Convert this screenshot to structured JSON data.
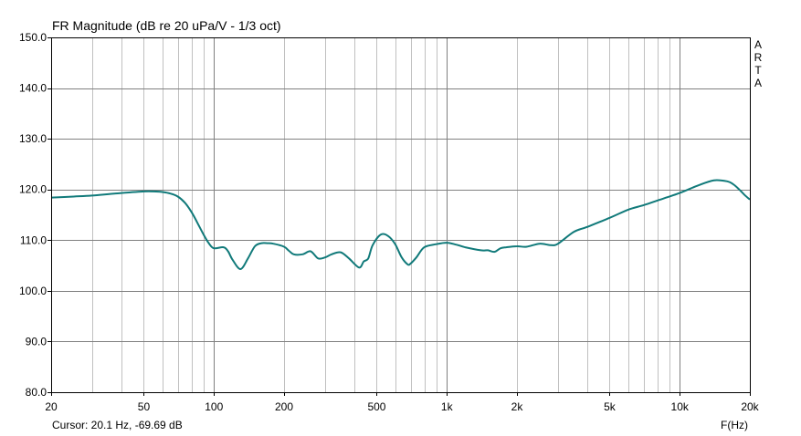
{
  "header": {
    "title": "FR Magnitude (dB re 20 uPa/V - 1/3 oct)"
  },
  "footer": {
    "cursor": "Cursor: 20.1 Hz, -69.69 dB",
    "x_unit": "F(Hz)"
  },
  "brand_letters": [
    "A",
    "R",
    "T",
    "A"
  ],
  "colors": {
    "curve": "#117a7a",
    "grid_light": "#c0c0c0",
    "grid_major": "#808080",
    "frame": "#000000",
    "background": "#ffffff"
  },
  "chart_data": {
    "type": "line",
    "title": "FR Magnitude (dB re 20 uPa/V - 1/3 oct)",
    "xlabel": "F(Hz)",
    "ylabel": "",
    "xscale": "log",
    "xlim": [
      20,
      20000
    ],
    "ylim": [
      80,
      150
    ],
    "grid": true,
    "y_ticks": [
      {
        "value": 80,
        "label": "80.0"
      },
      {
        "value": 90,
        "label": "90.0"
      },
      {
        "value": 100,
        "label": "100.0"
      },
      {
        "value": 110,
        "label": "110.0"
      },
      {
        "value": 120,
        "label": "120.0"
      },
      {
        "value": 130,
        "label": "130.0"
      },
      {
        "value": 140,
        "label": "140.0"
      },
      {
        "value": 150,
        "label": "150.0"
      }
    ],
    "x_ticks": [
      {
        "value": 20,
        "label": "20"
      },
      {
        "value": 50,
        "label": "50"
      },
      {
        "value": 100,
        "label": "100"
      },
      {
        "value": 200,
        "label": "200"
      },
      {
        "value": 500,
        "label": "500"
      },
      {
        "value": 1000,
        "label": "1k"
      },
      {
        "value": 2000,
        "label": "2k"
      },
      {
        "value": 5000,
        "label": "5k"
      },
      {
        "value": 10000,
        "label": "10k"
      },
      {
        "value": 20000,
        "label": "20k"
      }
    ],
    "series": [
      {
        "name": "FR Magnitude",
        "x": [
          20,
          25,
          30,
          40,
          50,
          55,
          60,
          65,
          70,
          75,
          80,
          85,
          90,
          95,
          100,
          110,
          115,
          120,
          130,
          140,
          150,
          160,
          170,
          180,
          200,
          210,
          220,
          240,
          260,
          280,
          300,
          320,
          350,
          380,
          420,
          440,
          460,
          480,
          520,
          560,
          600,
          640,
          680,
          700,
          740,
          800,
          900,
          1000,
          1100,
          1200,
          1400,
          1500,
          1600,
          1700,
          1800,
          2000,
          2200,
          2500,
          2800,
          3000,
          3500,
          4000,
          5000,
          6000,
          7000,
          8000,
          10000,
          12000,
          14000,
          16000,
          17000,
          18000,
          19000,
          20000
        ],
        "values": [
          118.4,
          118.6,
          118.8,
          119.3,
          119.6,
          119.6,
          119.5,
          119.2,
          118.6,
          117.4,
          115.6,
          113.4,
          111.2,
          109.4,
          108.4,
          108.6,
          107.8,
          106.2,
          104.3,
          106.4,
          108.8,
          109.4,
          109.4,
          109.3,
          108.7,
          107.9,
          107.2,
          107.2,
          107.8,
          106.4,
          106.6,
          107.2,
          107.6,
          106.4,
          104.6,
          105.8,
          106.4,
          109.0,
          111.1,
          110.8,
          109.2,
          106.6,
          105.2,
          105.4,
          106.6,
          108.6,
          109.2,
          109.5,
          109.1,
          108.6,
          108.0,
          108.0,
          107.7,
          108.4,
          108.6,
          108.8,
          108.7,
          109.3,
          109.0,
          109.3,
          111.6,
          112.6,
          114.4,
          116.0,
          116.9,
          117.8,
          119.3,
          120.8,
          121.8,
          121.6,
          121.0,
          120.0,
          118.9,
          118.0
        ]
      }
    ]
  }
}
